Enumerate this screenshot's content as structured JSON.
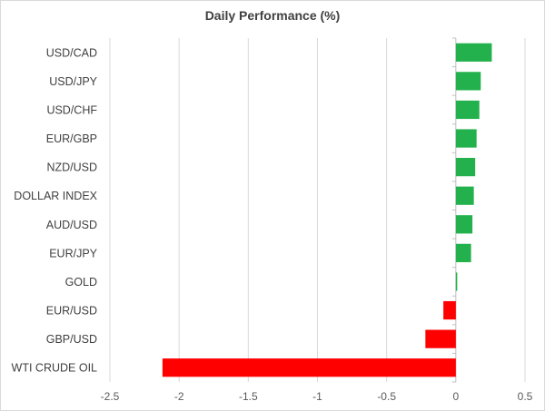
{
  "chart_data": {
    "type": "bar",
    "orientation": "horizontal",
    "title": "Daily Performance (%)",
    "categories": [
      "USD/CAD",
      "USD/JPY",
      "USD/CHF",
      "EUR/GBP",
      "NZD/USD",
      "DOLLAR INDEX",
      "AUD/USD",
      "EUR/JPY",
      "GOLD",
      "EUR/USD",
      "GBP/USD",
      "WTI CRUDE OIL"
    ],
    "values": [
      0.26,
      0.18,
      0.17,
      0.15,
      0.14,
      0.13,
      0.12,
      0.11,
      0.01,
      -0.09,
      -0.22,
      -2.12
    ],
    "xlim": [
      -2.5,
      0.5
    ],
    "xticks": [
      "-2.5",
      "-2",
      "-1.5",
      "-1",
      "-0.5",
      "0",
      "0.5"
    ],
    "xtick_values": [
      -2.5,
      -2,
      -1.5,
      -1,
      -0.5,
      0,
      0.5
    ],
    "grid": true,
    "colors": {
      "positive": "#22b14c",
      "negative": "#ff0000",
      "grid": "#d9d9d9",
      "axis": "#bfbfbf"
    }
  }
}
